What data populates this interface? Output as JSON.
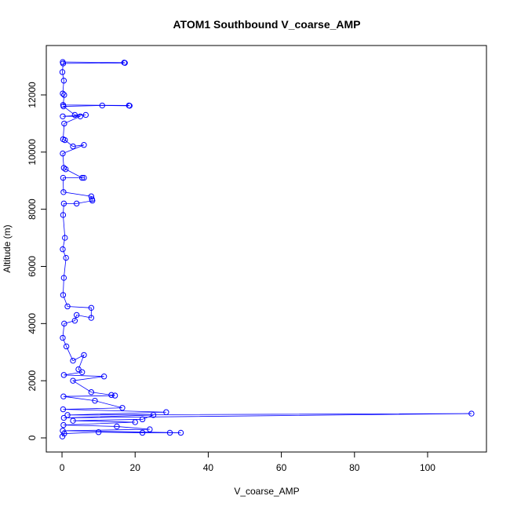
{
  "chart_data": {
    "type": "line",
    "title": "ATOM1 Southbound V_coarse_AMP",
    "x_label": "V_coarse_AMP",
    "y_label": "Altitude (m)",
    "xlim": [
      -4.3,
      116.1
    ],
    "ylim": [
      -494,
      13729
    ],
    "xticks": [
      0,
      20,
      40,
      60,
      80,
      100
    ],
    "yticks": [
      0,
      2000,
      4000,
      6000,
      8000,
      10000,
      12000
    ],
    "markers": true,
    "series": [
      {
        "color": "#0000ff",
        "x": [
          0.2,
          17,
          17.2,
          0.3,
          0.1,
          0.5,
          0.2,
          0.6,
          0.3,
          18.3,
          18.5,
          11,
          0.4,
          3.5,
          6.5,
          0.2,
          5,
          0.6,
          0.3,
          0.8,
          3,
          6,
          0.2,
          0.5,
          1,
          5.5,
          6,
          0.3,
          0.4,
          8,
          8.2,
          8.3,
          4,
          0.5,
          0.3,
          0.8,
          0.2,
          1.1,
          0.5,
          0.3,
          1.5,
          8,
          8,
          4,
          3.5,
          0.6,
          0.2,
          1.2,
          3,
          6,
          4.5,
          5.5,
          0.5,
          11.5,
          3,
          8,
          13.5,
          14.5,
          0.4,
          9,
          16.5,
          0.3,
          28.5,
          1.5,
          112,
          0.5,
          25,
          22,
          3,
          20,
          0.4,
          15,
          24,
          0.2,
          32.5,
          29.5,
          22,
          10,
          0.6,
          0.1
        ],
        "values": [
          13150,
          13130,
          13120,
          13100,
          12800,
          12500,
          12050,
          12000,
          11650,
          11630,
          11620,
          11630,
          11600,
          11300,
          11300,
          11250,
          11250,
          11000,
          10450,
          10420,
          10200,
          10250,
          9950,
          9450,
          9400,
          9100,
          9100,
          9100,
          8600,
          8450,
          8350,
          8300,
          8200,
          8200,
          7800,
          7000,
          6600,
          6300,
          5600,
          5000,
          4600,
          4550,
          4200,
          4300,
          4100,
          4000,
          3500,
          3200,
          2700,
          2900,
          2400,
          2300,
          2200,
          2150,
          2000,
          1600,
          1500,
          1480,
          1450,
          1300,
          1050,
          1000,
          900,
          800,
          850,
          700,
          800,
          650,
          600,
          550,
          450,
          400,
          300,
          250,
          180,
          180,
          180,
          200,
          150,
          50
        ]
      }
    ]
  }
}
